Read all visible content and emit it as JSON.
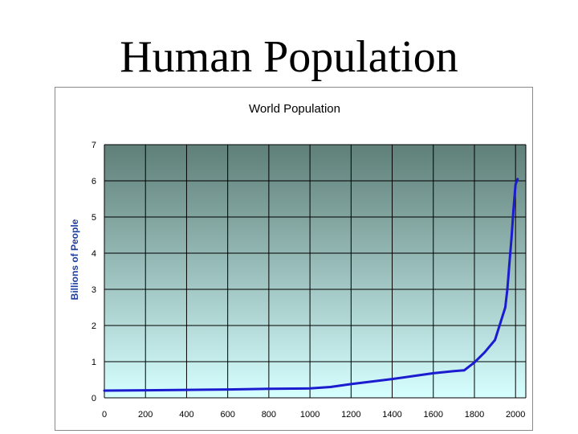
{
  "slide": {
    "title": "Human Population"
  },
  "colors": {
    "line": "#1b1bd0",
    "plot_top": "#5f7f78",
    "plot_bottom": "#d6ffff",
    "grid": "#000000",
    "ylabel": "#1f3fa0"
  },
  "chart_data": {
    "type": "line",
    "title": "World Population",
    "xlabel": "",
    "ylabel": "Billions of People",
    "xlim": [
      0,
      2050
    ],
    "ylim": [
      0,
      7
    ],
    "x_ticks": [
      "0",
      "200",
      "400",
      "600",
      "800",
      "1000",
      "1200",
      "1400",
      "1600",
      "1800",
      "2000"
    ],
    "y_ticks": [
      "0",
      "1",
      "2",
      "3",
      "4",
      "5",
      "6",
      "7"
    ],
    "grid": true,
    "legend": "none",
    "series": [
      {
        "x": [
          0,
          200,
          400,
          600,
          800,
          1000,
          1100,
          1200,
          1300,
          1400,
          1500,
          1600,
          1700,
          1750,
          1800,
          1850,
          1900,
          1950,
          1960,
          1970,
          1980,
          1990,
          2000,
          2010
        ],
        "y": [
          0.2,
          0.21,
          0.22,
          0.23,
          0.25,
          0.26,
          0.3,
          0.38,
          0.45,
          0.52,
          0.6,
          0.68,
          0.74,
          0.76,
          0.98,
          1.26,
          1.6,
          2.5,
          3.0,
          3.7,
          4.4,
          5.2,
          5.9,
          6.05
        ]
      }
    ]
  }
}
